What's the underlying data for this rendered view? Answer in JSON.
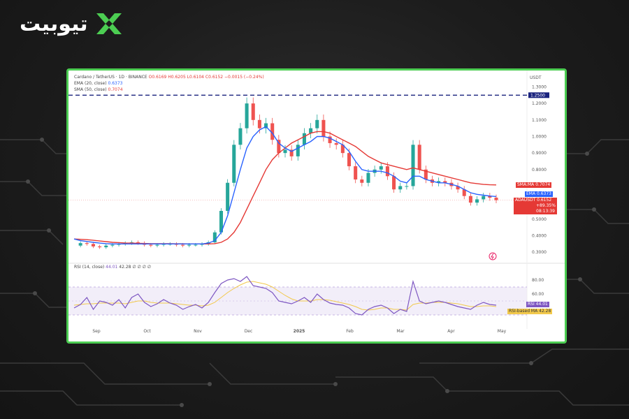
{
  "brand": {
    "name": "تیوبیت"
  },
  "colors": {
    "frame": "#4ccd52",
    "price_red": "#e53935",
    "ema_blue": "#2962ff",
    "sma_red": "#e53935",
    "rsi_purple": "#7e57c2",
    "rsi_ma_gold": "#f2c94c",
    "dashed_line": "#1a237e",
    "candle_up": "#26a69a",
    "candle_down": "#ef5350"
  },
  "legend": {
    "title": "Cardano / TetherUS · 1D · BINANCE",
    "ohlc": "O0.6169  H0.6205  L0.6104  C0.6152  −0.0015 (−0.24%)",
    "ema": "EMA (20, close)",
    "ema_value": "0.6373",
    "sma": "SMA (50, close)",
    "sma_value": "0.7074"
  },
  "rsi_legend": {
    "label": "RSI (14, close)",
    "rsi_value": "44.01",
    "ma_value": "42.28",
    "extra": "∅ ∅ ∅ ∅"
  },
  "price_axis": {
    "currency": "USDT",
    "ticks": [
      "1.3000",
      "1.2000",
      "1.1000",
      "1.0000",
      "0.9000",
      "0.8000",
      "0.5000",
      "0.4000",
      "0.3000"
    ],
    "dashed_label": "1.2500"
  },
  "rsi_axis": {
    "ticks": [
      "80.00",
      "60.00"
    ]
  },
  "time_axis": {
    "labels": [
      "Sep",
      "Oct",
      "Nov",
      "Dec",
      "2025",
      "Feb",
      "Mar",
      "Apr",
      "May"
    ]
  },
  "tags": {
    "sma": {
      "name": "SMA:MA",
      "value": "0.7074"
    },
    "ema": {
      "name": "EMA",
      "value": "0.6373"
    },
    "price": {
      "name": "ADAUSDT",
      "value": "0.6152",
      "change": "+89.35%",
      "countdown": "08:13:39"
    },
    "rsi": {
      "name": "RSI",
      "value": "44.01"
    },
    "rsi_ma": {
      "name": "RSI-based MA",
      "value": "42.28"
    }
  },
  "chart_data": [
    {
      "type": "line",
      "title": "Cardano / TetherUS · 1D · BINANCE",
      "xlabel": "",
      "ylabel": "",
      "x_labels": [
        "Sep",
        "Oct",
        "Nov",
        "Dec",
        "2025",
        "Feb",
        "Mar",
        "Apr",
        "May"
      ],
      "ylim": [
        0.25,
        1.34
      ],
      "dashed_level": 1.25,
      "series": [
        {
          "name": "ADAUSDT",
          "values": [
            0.34,
            0.355,
            0.35,
            0.335,
            0.33,
            0.34,
            0.345,
            0.35,
            0.355,
            0.36,
            0.355,
            0.345,
            0.34,
            0.345,
            0.35,
            0.35,
            0.345,
            0.34,
            0.345,
            0.345,
            0.35,
            0.36,
            0.42,
            0.55,
            0.72,
            0.95,
            1.05,
            1.2,
            1.1,
            1.05,
            1.08,
            0.98,
            0.9,
            0.92,
            0.88,
            0.95,
            1.02,
            1.05,
            1.1,
            1.0,
            0.96,
            0.95,
            0.9,
            0.82,
            0.74,
            0.72,
            0.78,
            0.8,
            0.82,
            0.76,
            0.68,
            0.7,
            0.7,
            0.95,
            0.8,
            0.74,
            0.72,
            0.73,
            0.72,
            0.7,
            0.68,
            0.64,
            0.6,
            0.62,
            0.64,
            0.63,
            0.615
          ]
        },
        {
          "name": "EMA",
          "values": [
            0.38,
            0.37,
            0.365,
            0.36,
            0.355,
            0.352,
            0.35,
            0.35,
            0.35,
            0.35,
            0.35,
            0.35,
            0.35,
            0.35,
            0.35,
            0.35,
            0.35,
            0.35,
            0.35,
            0.35,
            0.35,
            0.355,
            0.37,
            0.42,
            0.52,
            0.66,
            0.8,
            0.93,
            1.0,
            1.04,
            1.06,
            1.02,
            0.96,
            0.93,
            0.91,
            0.93,
            0.95,
            0.97,
            1.0,
            1.0,
            0.99,
            0.97,
            0.95,
            0.91,
            0.85,
            0.8,
            0.79,
            0.79,
            0.79,
            0.78,
            0.76,
            0.73,
            0.72,
            0.76,
            0.76,
            0.74,
            0.73,
            0.72,
            0.72,
            0.71,
            0.7,
            0.68,
            0.66,
            0.65,
            0.645,
            0.64,
            0.637
          ]
        },
        {
          "name": "SMA",
          "values": [
            0.38,
            0.378,
            0.376,
            0.372,
            0.368,
            0.364,
            0.36,
            0.358,
            0.356,
            0.355,
            0.354,
            0.353,
            0.352,
            0.352,
            0.352,
            0.352,
            0.351,
            0.351,
            0.35,
            0.35,
            0.35,
            0.35,
            0.352,
            0.36,
            0.38,
            0.42,
            0.48,
            0.56,
            0.64,
            0.72,
            0.8,
            0.86,
            0.9,
            0.93,
            0.96,
            0.98,
            1.0,
            1.02,
            1.03,
            1.03,
            1.02,
            1.0,
            0.98,
            0.96,
            0.94,
            0.91,
            0.88,
            0.86,
            0.84,
            0.83,
            0.82,
            0.81,
            0.8,
            0.81,
            0.8,
            0.79,
            0.78,
            0.77,
            0.76,
            0.75,
            0.74,
            0.73,
            0.72,
            0.715,
            0.71,
            0.708,
            0.707
          ]
        }
      ]
    },
    {
      "type": "line",
      "title": "RSI (14, close)",
      "xlabel": "",
      "ylabel": "",
      "ylim": [
        20,
        90
      ],
      "bands": [
        30,
        70
      ],
      "series": [
        {
          "name": "RSI",
          "values": [
            40,
            45,
            55,
            38,
            50,
            48,
            44,
            52,
            40,
            55,
            60,
            48,
            42,
            46,
            52,
            47,
            44,
            38,
            42,
            45,
            40,
            48,
            62,
            75,
            80,
            82,
            78,
            85,
            72,
            70,
            68,
            62,
            50,
            48,
            46,
            50,
            55,
            48,
            60,
            52,
            47,
            45,
            44,
            40,
            32,
            30,
            38,
            42,
            44,
            40,
            32,
            38,
            35,
            78,
            50,
            46,
            48,
            50,
            48,
            45,
            42,
            40,
            38,
            44,
            48,
            45,
            44
          ]
        },
        {
          "name": "RSI-based MA",
          "values": [
            44,
            45,
            46,
            46,
            47,
            47,
            47,
            47,
            46,
            48,
            50,
            50,
            48,
            47,
            47,
            47,
            46,
            45,
            44,
            44,
            43,
            44,
            48,
            55,
            62,
            68,
            73,
            77,
            78,
            76,
            74,
            70,
            64,
            58,
            53,
            50,
            50,
            50,
            52,
            52,
            51,
            49,
            47,
            45,
            42,
            38,
            37,
            38,
            40,
            40,
            38,
            38,
            37,
            45,
            47,
            47,
            48,
            48,
            48,
            47,
            46,
            44,
            42,
            42,
            43,
            43,
            42
          ]
        }
      ]
    }
  ]
}
